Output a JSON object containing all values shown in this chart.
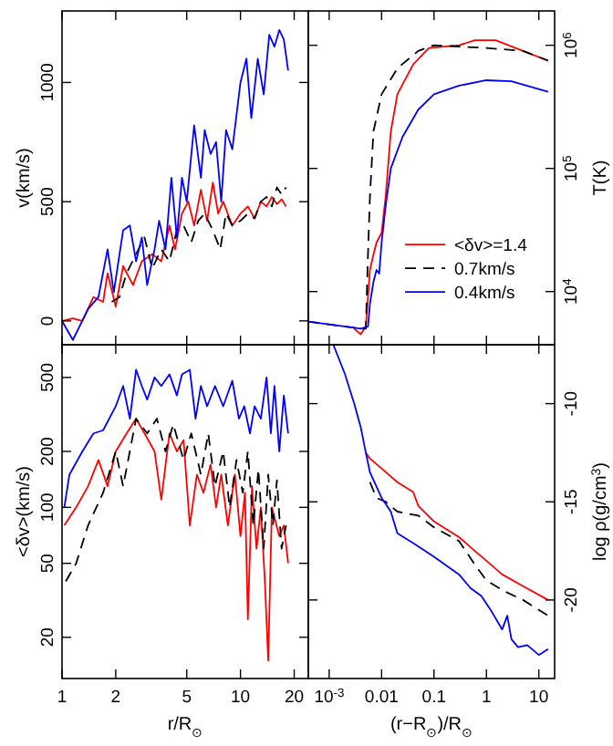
{
  "chart_data": [
    {
      "type": "line",
      "ylabel": "v(km/s)",
      "log": "x",
      "xlim": [
        1,
        24
      ],
      "xticks": [
        1,
        2,
        5,
        10,
        20
      ],
      "ylim": [
        -100,
        1300
      ],
      "yticks": [
        0,
        500,
        1000
      ],
      "tick_labels": "y",
      "series": [
        {
          "color": "#ff0000",
          "x": [
            1,
            1.15,
            1.3,
            1.5,
            1.7,
            1.8,
            2,
            2.2,
            2.5,
            2.8,
            3.2,
            3.6,
            4,
            4.3,
            4.7,
            5.1,
            5.5,
            6,
            6.5,
            7,
            7.5,
            8,
            9,
            10,
            11,
            12,
            13,
            14,
            15,
            16,
            17,
            18
          ],
          "values": [
            0,
            10,
            0,
            100,
            80,
            200,
            60,
            230,
            150,
            250,
            280,
            250,
            400,
            300,
            450,
            500,
            400,
            550,
            420,
            580,
            450,
            500,
            400,
            450,
            480,
            430,
            500,
            480,
            520,
            490,
            510,
            480
          ]
        },
        {
          "color": "#000000",
          "line_style": "dashed",
          "x": [
            1.9,
            2.1,
            2.3,
            2.6,
            2.9,
            3.2,
            3.6,
            4,
            4.4,
            4.8,
            5.3,
            5.8,
            6.3,
            7,
            7.7,
            8.3,
            9,
            10,
            11,
            12,
            13,
            14,
            15,
            16,
            17,
            18
          ],
          "values": [
            80,
            100,
            200,
            280,
            350,
            220,
            300,
            250,
            380,
            400,
            330,
            420,
            450,
            380,
            300,
            450,
            400,
            420,
            450,
            430,
            500,
            520,
            480,
            560,
            530,
            560
          ]
        },
        {
          "color": "#0000ff",
          "x": [
            1,
            1.15,
            1.4,
            1.6,
            1.8,
            1.95,
            2.2,
            2.4,
            2.6,
            2.8,
            3,
            3.3,
            3.5,
            3.8,
            4.1,
            4.4,
            4.7,
            5,
            5.5,
            6,
            6.3,
            6.8,
            7.3,
            7.8,
            8.3,
            9,
            10,
            10.8,
            11.5,
            12.5,
            13.5,
            14.5,
            15.5,
            16.5,
            17.5,
            18.5
          ],
          "values": [
            0,
            -80,
            50,
            100,
            300,
            120,
            380,
            400,
            250,
            350,
            150,
            300,
            420,
            300,
            600,
            350,
            600,
            500,
            820,
            600,
            800,
            700,
            750,
            500,
            800,
            720,
            1000,
            1100,
            850,
            1100,
            950,
            1200,
            1150,
            1220,
            1180,
            1050
          ]
        }
      ]
    },
    {
      "type": "line",
      "ylabel": "T(K)",
      "log": "xy",
      "xlim": [
        0.0004,
        20
      ],
      "xticks": [
        0.001,
        0.01,
        0.1,
        1,
        10
      ],
      "ylim": [
        3700,
        1900000
      ],
      "yticks": [
        {
          "value": 10000,
          "label": "10$^{4}$"
        },
        {
          "value": 100000,
          "label": "10$^{5}$"
        },
        {
          "value": 1000000,
          "label": "10$^{6}$"
        }
      ],
      "tick_labels": "y",
      "legend": "right",
      "series": [
        {
          "name": "<δv>=1.4",
          "color": "#ff0000",
          "x": [
            0.003,
            0.004,
            0.005,
            0.0055,
            0.006,
            0.007,
            0.008,
            0.01,
            0.012,
            0.015,
            0.02,
            0.04,
            0.08,
            0.3,
            0.6,
            1.5,
            5,
            15
          ],
          "values": [
            5000,
            4500,
            5200,
            9000,
            15000,
            20000,
            25000,
            30000,
            60000,
            200000,
            400000,
            700000,
            950000,
            1000000,
            1100000,
            1100000,
            900000,
            750000
          ]
        },
        {
          "name": "0.7km/s",
          "color": "#000000",
          "line_style": "dashed",
          "x": [
            0.0004,
            0.004,
            0.005,
            0.0055,
            0.006,
            0.007,
            0.01,
            0.02,
            0.05,
            0.1,
            1,
            5,
            15
          ],
          "values": [
            5700,
            5000,
            5000,
            20000,
            60000,
            200000,
            400000,
            650000,
            900000,
            1000000,
            950000,
            900000,
            750000
          ]
        },
        {
          "name": "0.4km/s",
          "color": "#0000ff",
          "x": [
            0.0004,
            0.004,
            0.0055,
            0.006,
            0.007,
            0.008,
            0.009,
            0.01,
            0.012,
            0.015,
            0.025,
            0.05,
            0.1,
            0.3,
            1,
            3,
            15
          ],
          "values": [
            5700,
            5000,
            5200,
            8000,
            12000,
            15000,
            14000,
            25000,
            50000,
            100000,
            180000,
            300000,
            400000,
            470000,
            520000,
            510000,
            420000
          ]
        }
      ]
    },
    {
      "type": "line",
      "xlabel": "r/R$_{⊙}$",
      "ylabel": "<δv>(km/s)",
      "log": "xy",
      "xlim": [
        1,
        24
      ],
      "xticks": [
        1,
        2,
        5,
        10,
        20
      ],
      "ylim": [
        12,
        750
      ],
      "yticks": [
        20,
        50,
        100,
        200,
        500
      ],
      "series": [
        {
          "color": "#ff0000",
          "x": [
            1.03,
            1.2,
            1.4,
            1.6,
            1.8,
            2,
            2.3,
            2.6,
            2.9,
            3.3,
            3.6,
            4,
            4.4,
            4.8,
            5.2,
            5.7,
            6.2,
            6.8,
            7.3,
            7.8,
            8.5,
            9.3,
            10,
            10.6,
            11,
            11.6,
            12.3,
            13,
            13.7,
            14.3,
            15,
            16.5,
            17.5,
            18.5
          ],
          "values": [
            80,
            100,
            130,
            180,
            130,
            200,
            250,
            300,
            250,
            200,
            110,
            250,
            200,
            230,
            80,
            150,
            120,
            170,
            100,
            150,
            80,
            150,
            70,
            120,
            25,
            130,
            60,
            100,
            40,
            15,
            100,
            70,
            80,
            50
          ]
        },
        {
          "color": "#000000",
          "line_style": "dashed",
          "x": [
            1.05,
            1.2,
            1.4,
            1.7,
            2,
            2.2,
            2.6,
            3,
            3.4,
            3.8,
            4.2,
            4.8,
            5.3,
            6,
            6.6,
            7.2,
            8,
            8.7,
            9.5,
            10.3,
            11,
            11.8,
            12.6,
            13.5,
            14.3,
            15.2,
            16,
            17,
            18
          ],
          "values": [
            40,
            50,
            80,
            120,
            200,
            130,
            300,
            250,
            300,
            200,
            280,
            180,
            250,
            150,
            250,
            130,
            200,
            100,
            180,
            120,
            200,
            80,
            160,
            60,
            150,
            80,
            140,
            60,
            80
          ]
        },
        {
          "color": "#0000ff",
          "x": [
            1.03,
            1.1,
            1.3,
            1.5,
            1.7,
            2,
            2.2,
            2.4,
            2.6,
            2.8,
            3,
            3.3,
            3.6,
            4,
            4.4,
            4.7,
            5.2,
            5.6,
            6,
            6.5,
            7.2,
            8,
            9,
            9.8,
            10.5,
            11.3,
            12,
            13,
            14,
            14.8,
            15.5,
            16.5,
            17.5,
            18.5
          ],
          "values": [
            100,
            150,
            200,
            250,
            260,
            350,
            450,
            300,
            550,
            450,
            380,
            500,
            450,
            520,
            400,
            520,
            550,
            300,
            450,
            350,
            450,
            350,
            480,
            300,
            350,
            250,
            350,
            300,
            500,
            250,
            450,
            200,
            400,
            250
          ]
        }
      ]
    },
    {
      "type": "line",
      "xlabel": "(r−R$_{⊙}$)/R$_{⊙}$",
      "ylabel": "log ρ(g/cm$^{3}$)",
      "log": "x",
      "xlim": [
        0.0004,
        20
      ],
      "xticks": [
        {
          "value": 0.001,
          "label": "10$^{-3}$"
        },
        0.01,
        0.1,
        1,
        10
      ],
      "ylim": [
        -24,
        -7
      ],
      "yticks": [
        -10,
        -15,
        -20
      ],
      "series": [
        {
          "color": "#ff0000",
          "x": [
            0.005,
            0.006,
            0.01,
            0.02,
            0.04,
            0.05,
            0.1,
            0.3,
            0.6,
            1,
            2,
            5,
            15
          ],
          "values": [
            -12.5,
            -12.8,
            -13.3,
            -14,
            -14.5,
            -15.2,
            -16,
            -16.8,
            -17.5,
            -18,
            -18.7,
            -19.3,
            -20
          ]
        },
        {
          "color": "#000000",
          "line_style": "dashed",
          "x": [
            0.006,
            0.008,
            0.012,
            0.02,
            0.05,
            0.1,
            0.3,
            0.6,
            1,
            2,
            5,
            15
          ],
          "values": [
            -14,
            -14.8,
            -15,
            -15.5,
            -15.7,
            -16.3,
            -17,
            -18.2,
            -19,
            -19.5,
            -20,
            -20.8
          ]
        },
        {
          "color": "#0000ff",
          "x": [
            0.0012,
            0.002,
            0.003,
            0.004,
            0.005,
            0.006,
            0.01,
            0.015,
            0.02,
            0.04,
            0.1,
            0.3,
            0.5,
            0.8,
            1.2,
            2,
            2.5,
            3,
            4,
            6,
            10,
            15
          ],
          "values": [
            -7,
            -8.5,
            -10,
            -11.2,
            -12.5,
            -13.5,
            -14.8,
            -15.5,
            -16.6,
            -17.1,
            -17.8,
            -18.7,
            -19.4,
            -19.8,
            -20.5,
            -21.5,
            -20.8,
            -22,
            -22.4,
            -22.3,
            -22.8,
            -22.5
          ]
        }
      ]
    }
  ]
}
